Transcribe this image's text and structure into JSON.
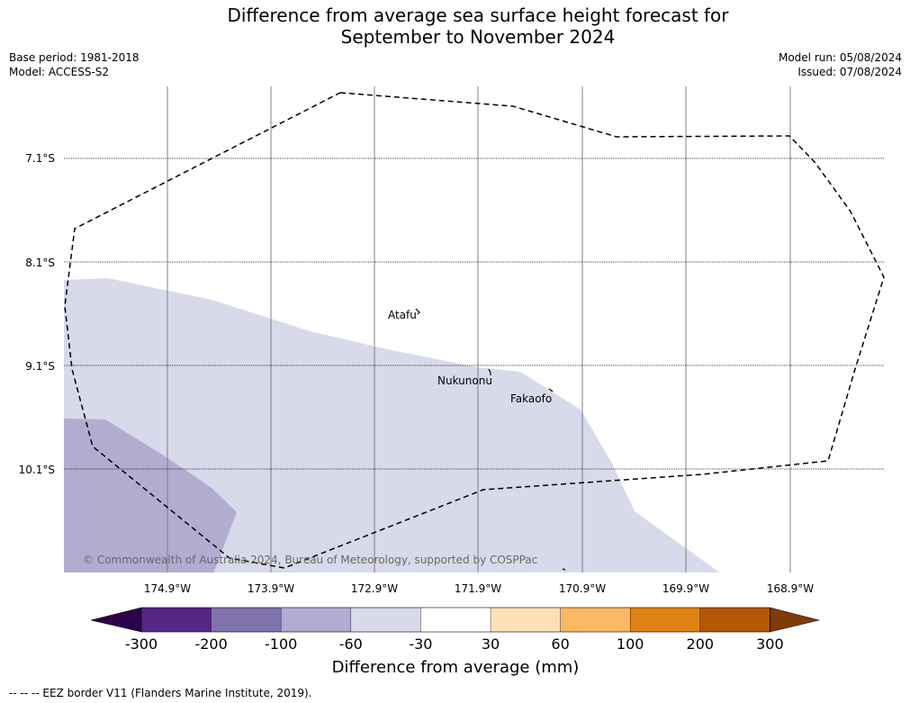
{
  "title_line1": "Difference from average sea surface height forecast for",
  "title_line2": "September to November 2024",
  "base_period": "Base period: 1981-2018",
  "model": "Model: ACCESS-S2",
  "model_run": "Model run: 05/08/2024",
  "issued": "Issued: 07/08/2024",
  "lat_labels": [
    "7.1°S",
    "8.1°S",
    "9.1°S",
    "10.1°S"
  ],
  "lon_labels": [
    "174.9°W",
    "173.9°W",
    "172.9°W",
    "171.9°W",
    "170.9°W",
    "169.9°W",
    "168.9°W"
  ],
  "places": {
    "atafu": "Atafu",
    "nukunonu": "Nukunonu",
    "fakaofo": "Fakaofo"
  },
  "copyright": "© Commonwealth of Australia 2024, Bureau of Meteorology, supported by COSPPac",
  "colorbar": {
    "title": "Difference from average (mm)",
    "ticks": [
      "-300",
      "-200",
      "-100",
      "-60",
      "-30",
      "30",
      "60",
      "100",
      "200",
      "300"
    ],
    "colors": [
      "#2d004b",
      "#542788",
      "#8073ac",
      "#b2abd2",
      "#d8daeb",
      "#ffffff",
      "#fee0b6",
      "#fdb863",
      "#e08214",
      "#b35806",
      "#7f3b08"
    ]
  },
  "footer": "--  --  -- EEZ border V11 (Flanders Marine Institute, 2019)."
}
